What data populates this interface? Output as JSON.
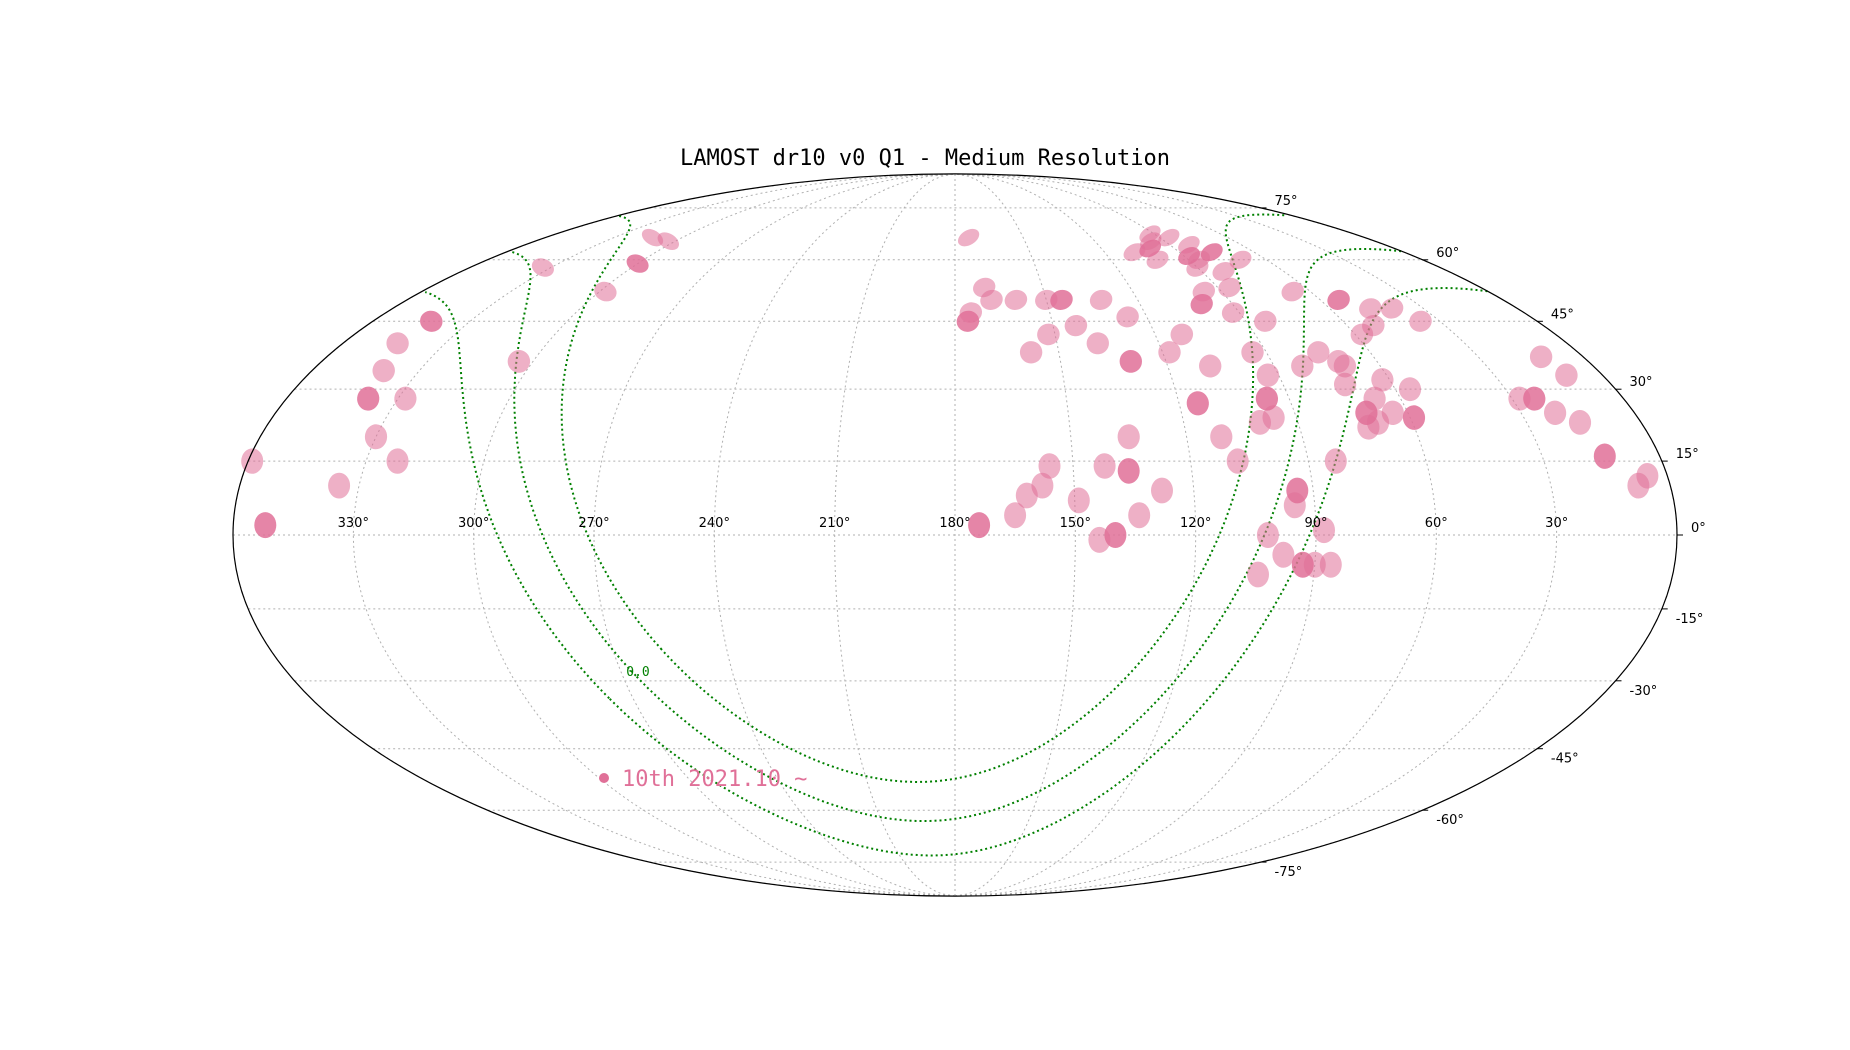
{
  "chart_data": {
    "type": "scatter",
    "projection": "mollweide",
    "title": "LAMOST dr10 v0 Q1 - Medium Resolution",
    "lon_ticks": [
      "330°",
      "300°",
      "270°",
      "240°",
      "210°",
      "180°",
      "150°",
      "120°",
      "90°",
      "60°",
      "30°"
    ],
    "lon_tick_values": [
      330,
      300,
      270,
      240,
      210,
      180,
      150,
      120,
      90,
      60,
      30
    ],
    "lat_ticks": [
      "75°",
      "60°",
      "45°",
      "30°",
      "15°",
      "0°",
      "-15°",
      "-30°",
      "-45°",
      "-60°",
      "-75°"
    ],
    "lat_tick_values": [
      75,
      60,
      45,
      30,
      15,
      0,
      -15,
      -30,
      -45,
      -60,
      -75
    ],
    "lon_direction": "increasing-left",
    "grid": true,
    "galactic_plane_label": "0.0",
    "galactic_line_color": "#008000",
    "series": [
      {
        "name": "10th 2021.10 ~",
        "color": "#e07098",
        "fields": [
          [
            352,
            2
          ],
          [
            335,
            10
          ],
          [
            322,
            15
          ],
          [
            330,
            20
          ],
          [
            328,
            28
          ],
          [
            338,
            28
          ],
          [
            340,
            34
          ],
          [
            344,
            40
          ],
          [
            304,
            36
          ],
          [
            298,
            52
          ],
          [
            300,
            59
          ],
          [
            303,
            65
          ],
          [
            313,
            66
          ],
          [
            333,
            58
          ],
          [
            359,
            15
          ],
          [
            342,
            45
          ],
          [
            174,
            66
          ],
          [
            170,
            53
          ],
          [
            175,
            47
          ],
          [
            168,
            50
          ],
          [
            176,
            45
          ],
          [
            160,
            50
          ],
          [
            158,
            38
          ],
          [
            150,
            50
          ],
          [
            152,
            42
          ],
          [
            145,
            50
          ],
          [
            138,
            40
          ],
          [
            143,
            44
          ],
          [
            132,
            50
          ],
          [
            126,
            46
          ],
          [
            130,
            36
          ],
          [
            118,
            38
          ],
          [
            112,
            42
          ],
          [
            108,
            62
          ],
          [
            102,
            60
          ],
          [
            100,
            63
          ],
          [
            96,
            65
          ],
          [
            92,
            67
          ],
          [
            86,
            66
          ],
          [
            82,
            64
          ],
          [
            88,
            61
          ],
          [
            90,
            58
          ],
          [
            82,
            57
          ],
          [
            86,
            53
          ],
          [
            96,
            52
          ],
          [
            100,
            49
          ],
          [
            92,
            47
          ],
          [
            84,
            45
          ],
          [
            94,
            38
          ],
          [
            93,
            33
          ],
          [
            96,
            28
          ],
          [
            96,
            24
          ],
          [
            100,
            23
          ],
          [
            111,
            20
          ],
          [
            108,
            35
          ],
          [
            115,
            27
          ],
          [
            82,
            35
          ],
          [
            75,
            38
          ],
          [
            71,
            36
          ],
          [
            73,
            31
          ],
          [
            71,
            25
          ],
          [
            64,
            25
          ],
          [
            67,
            28
          ],
          [
            69,
            23
          ],
          [
            72,
            22
          ],
          [
            59,
            24
          ],
          [
            62,
            32
          ],
          [
            56,
            30
          ],
          [
            58,
            42
          ],
          [
            52,
            44
          ],
          [
            54,
            50
          ],
          [
            47,
            48
          ],
          [
            40,
            48
          ],
          [
            36,
            45
          ],
          [
            28,
            28
          ],
          [
            24,
            28
          ],
          [
            21,
            25
          ],
          [
            16,
            23
          ],
          [
            10,
            33
          ],
          [
            12,
            37
          ],
          [
            14,
            16
          ],
          [
            5,
            12
          ],
          [
            8,
            10
          ],
          [
            70,
            35
          ],
          [
            83,
            15
          ],
          [
            94,
            9
          ],
          [
            95,
            6
          ],
          [
            88,
            1
          ],
          [
            108,
            15
          ],
          [
            128,
            9
          ],
          [
            136,
            13
          ],
          [
            135,
            20
          ],
          [
            142,
            14
          ],
          [
            149,
            7
          ],
          [
            134,
            4
          ],
          [
            140,
            0
          ],
          [
            144,
            -1
          ],
          [
            158,
            10
          ],
          [
            162,
            8
          ],
          [
            165,
            4
          ],
          [
            174,
            2
          ],
          [
            156,
            14
          ],
          [
            102,
            0
          ],
          [
            98,
            -4
          ],
          [
            104,
            -8
          ],
          [
            93,
            -6
          ],
          [
            90,
            -6
          ],
          [
            86,
            -6
          ],
          [
            66,
            52
          ],
          [
            70,
            60
          ],
          [
            77,
            62
          ],
          [
            86,
            60
          ]
        ]
      }
    ]
  }
}
